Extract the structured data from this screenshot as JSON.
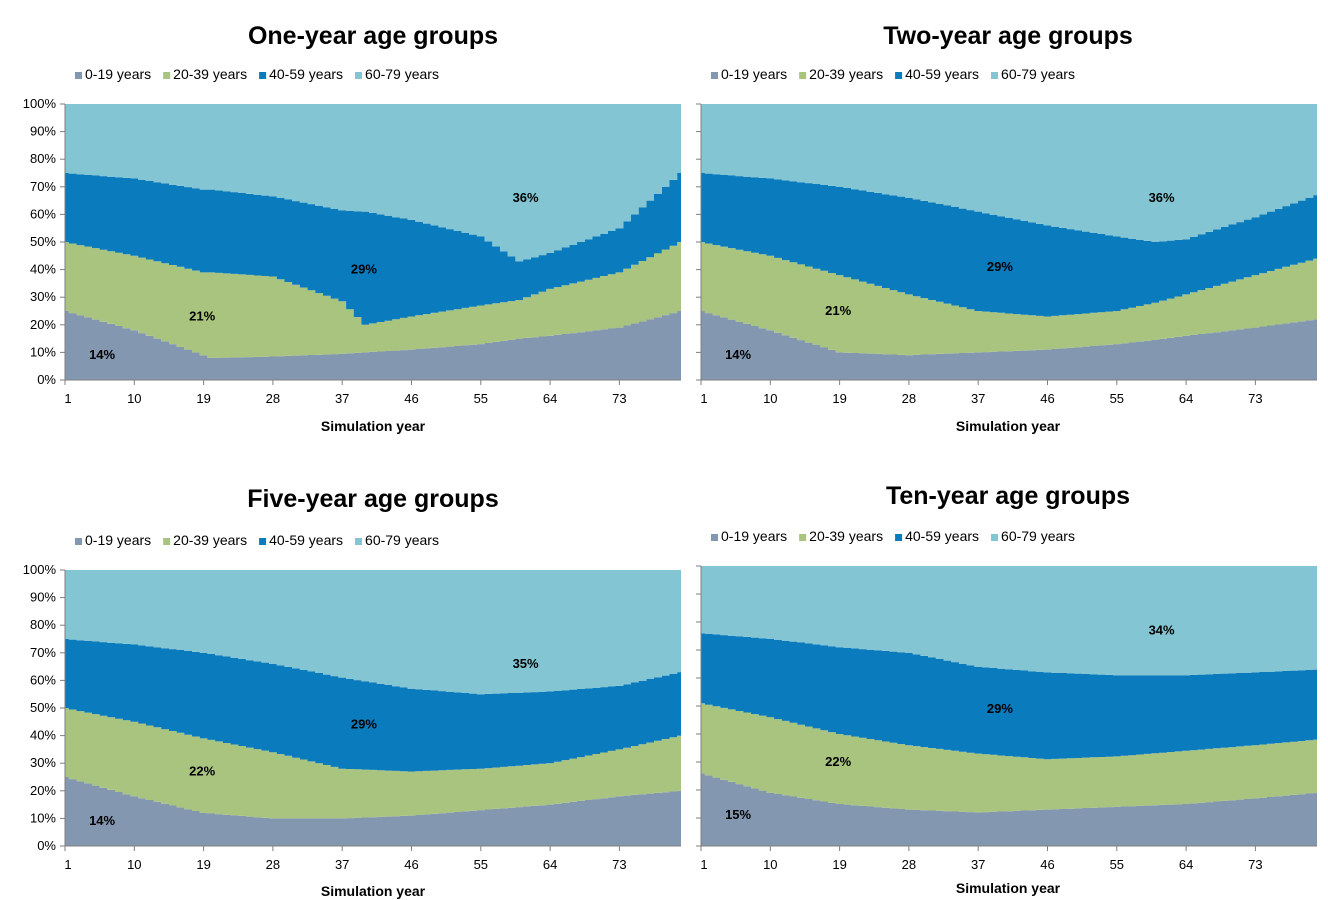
{
  "colors": {
    "0-19 years": "#8497b0",
    "20-39 years": "#a9c47f",
    "40-59 years": "#0a7bbd",
    "60-79 years": "#83c5d3"
  },
  "chart_data": [
    {
      "type": "area",
      "stacked": "percent",
      "title": "One-year age groups",
      "xlabel": "Simulation year",
      "x_ticks": [
        "1",
        "10",
        "19",
        "28",
        "37",
        "46",
        "55",
        "64",
        "73"
      ],
      "xlim": [
        1,
        81
      ],
      "y_ticks": [
        "0%",
        "10%",
        "20%",
        "30%",
        "40%",
        "50%",
        "60%",
        "70%",
        "80%",
        "90%",
        "100%"
      ],
      "ylim": [
        0,
        100
      ],
      "legend": [
        "0-19 years",
        "20-39 years",
        "40-59 years",
        "60-79 years"
      ],
      "legend_position": "top-left",
      "x": [
        1,
        10,
        19,
        20,
        28,
        37,
        40,
        46,
        55,
        60,
        64,
        73,
        81
      ],
      "series": [
        {
          "name": "0-19 years",
          "values": [
            25,
            18,
            9,
            8,
            8.5,
            9.5,
            10,
            11,
            13,
            15,
            16,
            19,
            25
          ]
        },
        {
          "name": "20-39 years",
          "values": [
            25,
            27,
            30,
            31,
            29,
            19,
            10,
            12,
            14,
            14,
            17,
            20,
            25
          ]
        },
        {
          "name": "40-59 years",
          "values": [
            25,
            28,
            30,
            30,
            29,
            33,
            41,
            35,
            25,
            14,
            13,
            16,
            25
          ]
        },
        {
          "name": "60-79 years",
          "values": [
            25,
            27,
            31,
            31,
            33.5,
            38.5,
            39,
            42,
            48,
            57,
            54,
            45,
            25
          ]
        }
      ],
      "annotations": [
        {
          "text": "14%",
          "x": 4,
          "y": 9
        },
        {
          "text": "21%",
          "x": 17,
          "y": 23
        },
        {
          "text": "29%",
          "x": 38,
          "y": 40
        },
        {
          "text": "36%",
          "x": 59,
          "y": 66
        }
      ]
    },
    {
      "type": "area",
      "stacked": "percent",
      "title": "Two-year age groups",
      "xlabel": "Simulation year",
      "x_ticks": [
        "1",
        "10",
        "19",
        "28",
        "37",
        "46",
        "55",
        "64",
        "73"
      ],
      "xlim": [
        1,
        81
      ],
      "y_ticks": [],
      "ylim": [
        0,
        100
      ],
      "legend": [
        "0-19 years",
        "20-39 years",
        "40-59 years",
        "60-79 years"
      ],
      "legend_position": "top-left",
      "x": [
        1,
        10,
        19,
        28,
        37,
        46,
        55,
        60,
        64,
        73,
        81
      ],
      "series": [
        {
          "name": "0-19 years",
          "values": [
            25,
            18,
            10,
            9,
            10,
            11,
            13,
            14.5,
            16,
            19,
            22
          ]
        },
        {
          "name": "20-39 years",
          "values": [
            25,
            27,
            28,
            22,
            15,
            12,
            12,
            13.5,
            15,
            19,
            22
          ]
        },
        {
          "name": "40-59 years",
          "values": [
            25,
            28,
            32,
            35,
            36,
            33,
            27,
            22,
            20,
            21,
            23
          ]
        },
        {
          "name": "60-79 years",
          "values": [
            25,
            27,
            30,
            34,
            39,
            44,
            48,
            50,
            49,
            41,
            33
          ]
        }
      ],
      "annotations": [
        {
          "text": "14%",
          "x": 4,
          "y": 9
        },
        {
          "text": "21%",
          "x": 17,
          "y": 25
        },
        {
          "text": "29%",
          "x": 38,
          "y": 41
        },
        {
          "text": "36%",
          "x": 59,
          "y": 66
        }
      ]
    },
    {
      "type": "area",
      "stacked": "percent",
      "title": "Five-year age groups",
      "xlabel": "Simulation year",
      "x_ticks": [
        "1",
        "10",
        "19",
        "28",
        "37",
        "46",
        "55",
        "64",
        "73"
      ],
      "xlim": [
        1,
        81
      ],
      "y_ticks": [
        "0%",
        "10%",
        "20%",
        "30%",
        "40%",
        "50%",
        "60%",
        "70%",
        "80%",
        "90%",
        "100%"
      ],
      "ylim": [
        0,
        100
      ],
      "legend": [
        "0-19 years",
        "20-39 years",
        "40-59 years",
        "60-79 years"
      ],
      "legend_position": "top-left",
      "x": [
        1,
        10,
        19,
        28,
        37,
        46,
        55,
        64,
        73,
        81
      ],
      "series": [
        {
          "name": "0-19 years",
          "values": [
            25,
            18,
            12,
            10,
            10,
            11,
            13,
            15,
            18,
            20
          ]
        },
        {
          "name": "20-39 years",
          "values": [
            25,
            27,
            27,
            24,
            18,
            16,
            15,
            15,
            17,
            20
          ]
        },
        {
          "name": "40-59 years",
          "values": [
            25,
            28,
            31,
            32,
            33,
            30,
            27,
            26,
            23,
            23
          ]
        },
        {
          "name": "60-79 years",
          "values": [
            25,
            27,
            30,
            34,
            39,
            43,
            45,
            44,
            42,
            37
          ]
        }
      ],
      "annotations": [
        {
          "text": "14%",
          "x": 4,
          "y": 9
        },
        {
          "text": "22%",
          "x": 17,
          "y": 27
        },
        {
          "text": "29%",
          "x": 38,
          "y": 44
        },
        {
          "text": "35%",
          "x": 59,
          "y": 66
        }
      ]
    },
    {
      "type": "area",
      "stacked": "percent",
      "title": "Ten-year age groups",
      "xlabel": "Simulation year",
      "x_ticks": [
        "1",
        "10",
        "19",
        "28",
        "37",
        "46",
        "55",
        "64",
        "73"
      ],
      "xlim": [
        1,
        81
      ],
      "y_ticks": [],
      "ylim": [
        0,
        100
      ],
      "legend": [
        "0-19 years",
        "20-39 years",
        "40-59 years",
        "60-79 years"
      ],
      "legend_position": "top-left",
      "x": [
        1,
        10,
        19,
        28,
        37,
        46,
        55,
        64,
        73,
        81
      ],
      "series": [
        {
          "name": "0-19 years",
          "values": [
            26,
            19,
            15,
            13,
            12,
            13,
            14,
            15,
            17,
            19
          ]
        },
        {
          "name": "20-39 years",
          "values": [
            25,
            27,
            25,
            23,
            21,
            18,
            18,
            19,
            19,
            19
          ]
        },
        {
          "name": "40-59 years",
          "values": [
            25,
            28,
            31,
            33,
            31,
            31,
            29,
            27,
            26,
            25
          ]
        },
        {
          "name": "60-79 years",
          "values": [
            24,
            26,
            29,
            31,
            36,
            38,
            39,
            39,
            38,
            37
          ]
        }
      ],
      "annotations": [
        {
          "text": "15%",
          "x": 4,
          "y": 11
        },
        {
          "text": "22%",
          "x": 17,
          "y": 30
        },
        {
          "text": "29%",
          "x": 38,
          "y": 49
        },
        {
          "text": "34%",
          "x": 59,
          "y": 77
        }
      ]
    }
  ]
}
